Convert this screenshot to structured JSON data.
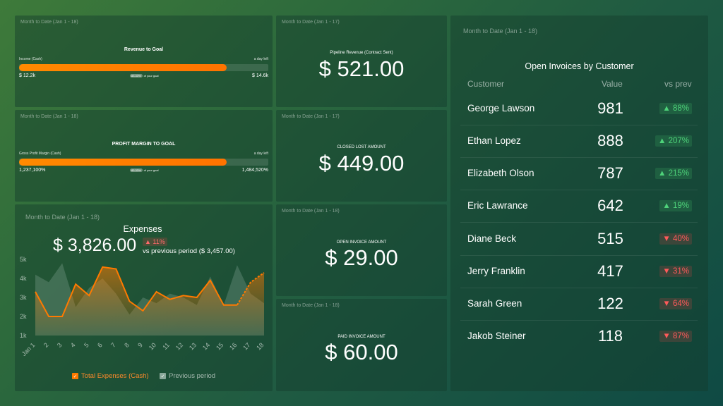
{
  "revenue_goal": {
    "period": "Month to Date (Jan 1 - 18)",
    "title": "Revenue to Goal",
    "metric": "Income (Cash)",
    "time_left": "a day left",
    "current": "$ 12.2k",
    "goal": "$ 14.6k",
    "percent_label": "83.33%",
    "suffix": "of your goal",
    "progress": 0.833
  },
  "profit_goal": {
    "period": "Month to Date (Jan 1 - 18)",
    "title": "PROFIT MARGIN TO GOAL",
    "metric": "Gross Profit Margin (Cash)",
    "time_left": "a day left",
    "current": "1,237,100%",
    "goal": "1,484,520%",
    "percent_label": "83.33%",
    "suffix": "of your goal",
    "progress": 0.833
  },
  "kpis": [
    {
      "period": "Month to Date (Jan 1 - 17)",
      "label": "Pipeline Revenue (Contract Sent)",
      "value": "$ 521.00"
    },
    {
      "period": "Month to Date (Jan 1 - 17)",
      "label": "CLOSED LOST AMOUNT",
      "value": "$ 449.00"
    },
    {
      "period": "Month to Date (Jan 1 - 18)",
      "label": "OPEN INVOICE AMOUNT",
      "value": "$ 29.00"
    },
    {
      "period": "Month to Date (Jan 1 - 18)",
      "label": "PAID INVOICE AMOUNT",
      "value": "$ 60.00"
    }
  ],
  "invoices": {
    "period": "Month to Date (Jan 1 - 18)",
    "title": "Open Invoices by Customer",
    "headers": {
      "customer": "Customer",
      "value": "Value",
      "change": "vs prev"
    },
    "rows": [
      {
        "customer": "George Lawson",
        "value": "981",
        "change": "▲ 88%",
        "dir": "up"
      },
      {
        "customer": "Ethan Lopez",
        "value": "888",
        "change": "▲ 207%",
        "dir": "up"
      },
      {
        "customer": "Elizabeth Olson",
        "value": "787",
        "change": "▲ 215%",
        "dir": "up"
      },
      {
        "customer": "Eric Lawrance",
        "value": "642",
        "change": "▲ 19%",
        "dir": "up"
      },
      {
        "customer": "Diane Beck",
        "value": "515",
        "change": "▼ 40%",
        "dir": "down"
      },
      {
        "customer": "Jerry Franklin",
        "value": "417",
        "change": "▼ 31%",
        "dir": "down"
      },
      {
        "customer": "Sarah Green",
        "value": "122",
        "change": "▼ 64%",
        "dir": "down"
      },
      {
        "customer": "Jakob Steiner",
        "value": "118",
        "change": "▼ 87%",
        "dir": "down"
      }
    ]
  },
  "expenses": {
    "period": "Month to Date (Jan 1 - 18)",
    "title": "Expenses",
    "total": "$ 3,826.00",
    "change": "▲ 11%",
    "vs_text": "vs previous period ($ 3,457.00)",
    "legend_current": "Total Expenses (Cash)",
    "legend_previous": "Previous period"
  },
  "colors": {
    "accent": "#ff7a00",
    "previous": "#8aa89a",
    "up": "#4ed27a",
    "down": "#ff5a5a"
  },
  "chart_data": {
    "type": "area",
    "x": [
      "Jan 1",
      "2",
      "3",
      "4",
      "5",
      "6",
      "7",
      "8",
      "9",
      "10",
      "11",
      "12",
      "13",
      "14",
      "15",
      "16",
      "17",
      "18"
    ],
    "yticks": [
      "1k",
      "2k",
      "3k",
      "4k",
      "5k"
    ],
    "ylim": [
      1000,
      5000
    ],
    "series": [
      {
        "name": "Total Expenses (Cash)",
        "values": [
          3300,
          2000,
          2000,
          3700,
          3100,
          4600,
          4500,
          2800,
          2300,
          3300,
          2900,
          3100,
          3000,
          3900,
          2600,
          2600,
          3800,
          4300
        ]
      },
      {
        "name": "Previous period",
        "values": [
          4200,
          3800,
          4800,
          2500,
          3500,
          4000,
          3200,
          2100,
          3000,
          2700,
          3200,
          3000,
          2600,
          4100,
          2600,
          4700,
          3200,
          2700
        ]
      }
    ]
  }
}
